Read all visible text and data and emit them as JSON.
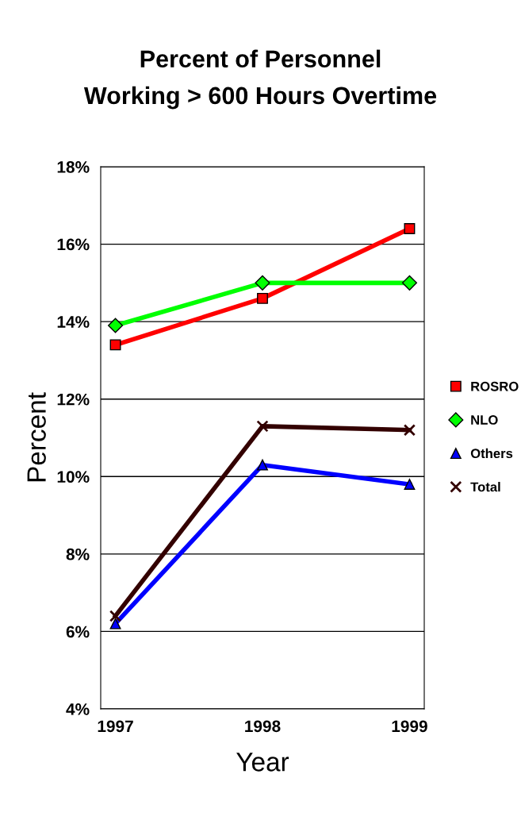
{
  "chart_data": {
    "type": "line",
    "title": "Percent of Personnel\nWorking > 600 Hours Overtime",
    "xlabel": "Year",
    "ylabel": "Percent",
    "x": [
      1997,
      1998,
      1999
    ],
    "xlim": [
      1996.9,
      1999.1
    ],
    "xticks": [
      1997,
      1998,
      1999
    ],
    "ylim": [
      4,
      18
    ],
    "yticks": [
      {
        "value": 4,
        "label": "4%"
      },
      {
        "value": 6,
        "label": "6%"
      },
      {
        "value": 8,
        "label": "8%"
      },
      {
        "value": 10,
        "label": "10%"
      },
      {
        "value": 12,
        "label": "12%"
      },
      {
        "value": 14,
        "label": "14%"
      },
      {
        "value": 16,
        "label": "16%"
      },
      {
        "value": 18,
        "label": "18%"
      }
    ],
    "grid": "y",
    "legend": "right",
    "series": [
      {
        "name": "ROSRO",
        "color": "#ff0000",
        "marker": "square",
        "values": [
          13.4,
          14.6,
          16.4
        ]
      },
      {
        "name": "NLO",
        "color": "#00ff00",
        "marker": "diamond",
        "values": [
          13.9,
          15.0,
          15.0
        ]
      },
      {
        "name": "Others",
        "color": "#0000ff",
        "marker": "triangle",
        "values": [
          6.2,
          10.3,
          9.8
        ]
      },
      {
        "name": "Total",
        "color": "#330000",
        "marker": "cross",
        "values": [
          6.4,
          11.3,
          11.2
        ]
      }
    ]
  }
}
